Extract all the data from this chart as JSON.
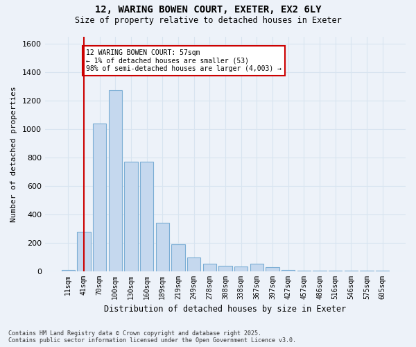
{
  "title_line1": "12, WARING BOWEN COURT, EXETER, EX2 6LY",
  "title_line2": "Size of property relative to detached houses in Exeter",
  "xlabel": "Distribution of detached houses by size in Exeter",
  "ylabel": "Number of detached properties",
  "bar_color": "#c5d8ee",
  "bar_edge_color": "#7aadd4",
  "categories": [
    "11sqm",
    "41sqm",
    "70sqm",
    "100sqm",
    "130sqm",
    "160sqm",
    "189sqm",
    "219sqm",
    "249sqm",
    "278sqm",
    "308sqm",
    "338sqm",
    "367sqm",
    "397sqm",
    "427sqm",
    "457sqm",
    "486sqm",
    "516sqm",
    "546sqm",
    "575sqm",
    "605sqm"
  ],
  "values": [
    10,
    280,
    1040,
    1270,
    770,
    770,
    340,
    190,
    100,
    55,
    40,
    35,
    55,
    30,
    10,
    5,
    3,
    3,
    5,
    3,
    5
  ],
  "ylim": [
    0,
    1650
  ],
  "yticks": [
    0,
    200,
    400,
    600,
    800,
    1000,
    1200,
    1400,
    1600
  ],
  "annotation_text": "12 WARING BOWEN COURT: 57sqm\n← 1% of detached houses are smaller (53)\n98% of semi-detached houses are larger (4,003) →",
  "annotation_box_color": "#ffffff",
  "annotation_box_edge_color": "#cc0000",
  "vline_color": "#cc0000",
  "vline_x": 1.0,
  "background_color": "#edf2f9",
  "grid_color": "#d8e4f0",
  "footer_text": "Contains HM Land Registry data © Crown copyright and database right 2025.\nContains public sector information licensed under the Open Government Licence v3.0."
}
